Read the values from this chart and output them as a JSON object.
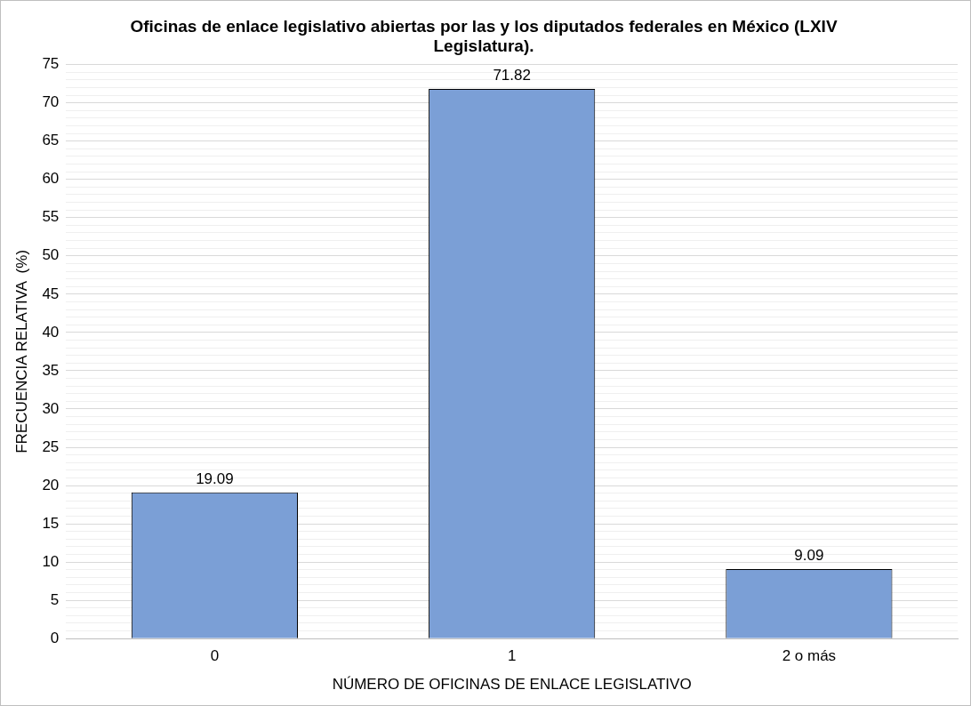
{
  "chart_data": {
    "type": "bar",
    "title": "Oficinas de enlace legislativo abiertas por las y los diputados federales en México (LXIV Legislatura).",
    "xlabel": "NÚMERO DE OFICINAS DE ENLACE LEGISLATIVO",
    "ylabel": "FRECUENCIA RELATIVA  (%)",
    "categories": [
      "0",
      "1",
      "2 o más"
    ],
    "values": [
      19.09,
      71.82,
      9.09
    ],
    "color": "#7b9fd6",
    "ylim": [
      0,
      75
    ],
    "yticks": [
      0,
      {
        "value": 1,
        "label": null
      },
      {
        "value": 2,
        "label": null
      },
      {
        "value": 3,
        "label": null
      },
      {
        "value": 4,
        "label": null
      },
      5,
      {
        "value": 6,
        "label": null
      },
      {
        "value": 7,
        "label": null
      },
      {
        "value": 8,
        "label": null
      },
      {
        "value": 9,
        "label": null
      },
      10,
      {
        "value": 11,
        "label": null
      },
      {
        "value": 12,
        "label": null
      },
      {
        "value": 13,
        "label": null
      },
      {
        "value": 14,
        "label": null
      },
      15,
      {
        "value": 16,
        "label": null
      },
      {
        "value": 17,
        "label": null
      },
      {
        "value": 18,
        "label": null
      },
      {
        "value": 19,
        "label": null
      },
      20,
      {
        "value": 21,
        "label": null
      },
      {
        "value": 22,
        "label": null
      },
      {
        "value": 23,
        "label": null
      },
      {
        "value": 24,
        "label": null
      },
      25,
      {
        "value": 26,
        "label": null
      },
      {
        "value": 27,
        "label": null
      },
      {
        "value": 28,
        "label": null
      },
      {
        "value": 29,
        "label": null
      },
      30,
      {
        "value": 31,
        "label": null
      },
      {
        "value": 32,
        "label": null
      },
      {
        "value": 33,
        "label": null
      },
      {
        "value": 34,
        "label": null
      },
      35,
      {
        "value": 36,
        "label": null
      },
      {
        "value": 37,
        "label": null
      },
      {
        "value": 38,
        "label": null
      },
      {
        "value": 39,
        "label": null
      },
      40,
      {
        "value": 41,
        "label": null
      },
      {
        "value": 42,
        "label": null
      },
      {
        "value": 43,
        "label": null
      },
      {
        "value": 44,
        "label": null
      },
      45,
      {
        "value": 46,
        "label": null
      },
      {
        "value": 47,
        "label": null
      },
      {
        "value": 48,
        "label": null
      },
      {
        "value": 49,
        "label": null
      },
      50,
      {
        "value": 51,
        "label": null
      },
      {
        "value": 52,
        "label": null
      },
      {
        "value": 53,
        "label": null
      },
      {
        "value": 54,
        "label": null
      },
      55,
      {
        "value": 56,
        "label": null
      },
      {
        "value": 57,
        "label": null
      },
      {
        "value": 58,
        "label": null
      },
      {
        "value": 59,
        "label": null
      },
      60,
      {
        "value": 61,
        "label": null
      },
      {
        "value": 62,
        "label": null
      },
      {
        "value": 63,
        "label": null
      },
      {
        "value": 64,
        "label": null
      },
      65,
      {
        "value": 66,
        "label": null
      },
      {
        "value": 67,
        "label": null
      },
      {
        "value": 68,
        "label": null
      },
      {
        "value": 69,
        "label": null
      },
      70,
      {
        "value": 71,
        "label": null
      },
      {
        "value": 72,
        "label": null
      },
      {
        "value": 73,
        "label": null
      },
      {
        "value": 74,
        "label": null
      },
      75
    ],
    "grid": "y",
    "data_labels": true
  }
}
